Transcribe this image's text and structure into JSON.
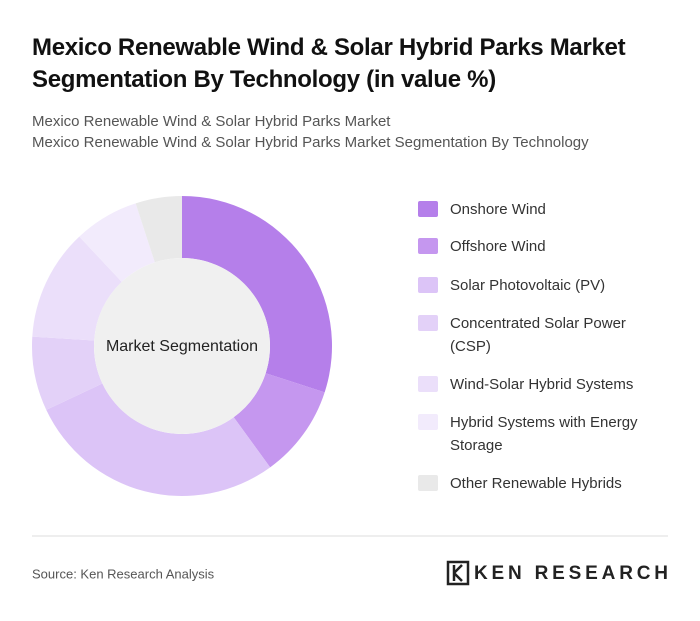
{
  "chart_data": {
    "type": "donut",
    "title": "Mexico Renewable Wind & Solar Hybrid Parks Market Segmentation By Technology (in value %)",
    "subtitle": [
      "Mexico Renewable Wind & Solar Hybrid Parks Market",
      "Mexico Renewable Wind & Solar Hybrid Parks Market Segmentation By Technology"
    ],
    "center_label": "Market Segmentation",
    "categories": [
      "Onshore Wind",
      "Offshore Wind",
      "Solar Photovoltaic (PV)",
      "Concentrated Solar Power (CSP)",
      "Wind-Solar Hybrid Systems",
      "Hybrid Systems with Energy Storage",
      "Other Renewable Hybrids"
    ],
    "values": [
      30,
      10,
      28,
      8,
      12,
      7,
      5
    ],
    "colors": [
      "#b57fea",
      "#c597ef",
      "#dcc4f7",
      "#e3d1f8",
      "#ebdffa",
      "#f2ebfc",
      "#e9e9e9"
    ],
    "legend": "right",
    "source": "Source: Ken Research Analysis",
    "logo": "KEN RESEARCH"
  }
}
